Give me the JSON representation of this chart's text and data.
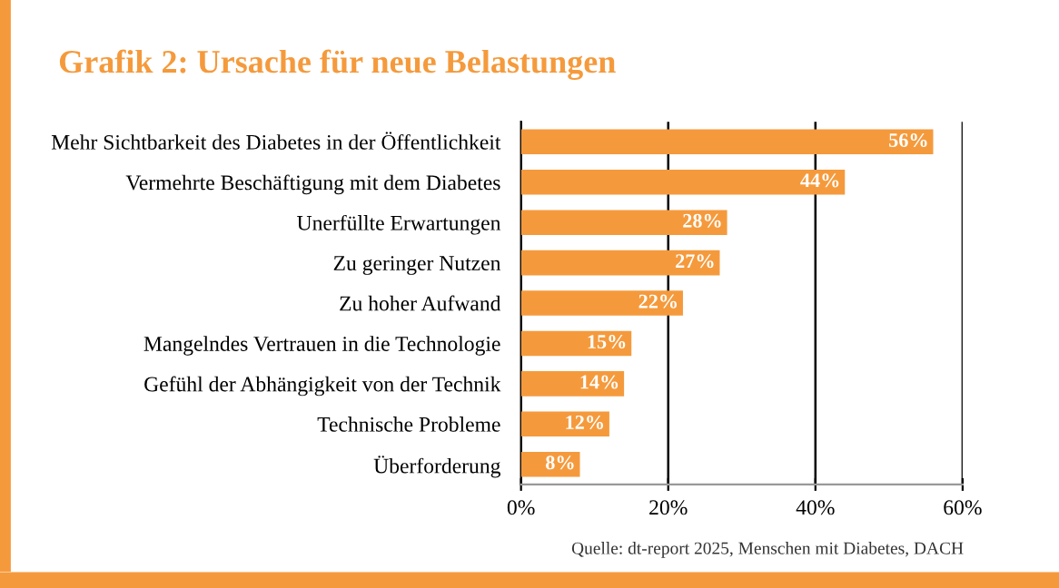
{
  "chart_data": {
    "type": "bar",
    "orientation": "horizontal",
    "title": "Grafik 2: Ursache für neue Belastungen",
    "categories": [
      "Mehr Sichtbarkeit des Diabetes in der Öffentlichkeit",
      "Vermehrte Beschäftigung mit dem Diabetes",
      "Unerfüllte Erwartungen",
      "Zu geringer Nutzen",
      "Zu hoher Aufwand",
      "Mangelndes Vertrauen in die Technologie",
      "Gefühl der Abhängigkeit von der Technik",
      "Technische Probleme",
      "Überforderung"
    ],
    "values": [
      56,
      44,
      28,
      27,
      22,
      15,
      14,
      12,
      8
    ],
    "value_labels": [
      "56%",
      "44%",
      "28%",
      "27%",
      "22%",
      "15%",
      "14%",
      "12%",
      "8%"
    ],
    "color": "#f59a3c",
    "xlim": [
      0,
      60
    ],
    "xticks": [
      {
        "value": 0,
        "label": "0%"
      },
      {
        "value": 20,
        "label": "20%"
      },
      {
        "value": 40,
        "label": "40%"
      },
      {
        "value": 60,
        "label": "60%"
      }
    ],
    "grid": "x",
    "annotations": [
      "Quelle: dt-report 2025, Menschen mit Diabetes, DACH"
    ]
  }
}
